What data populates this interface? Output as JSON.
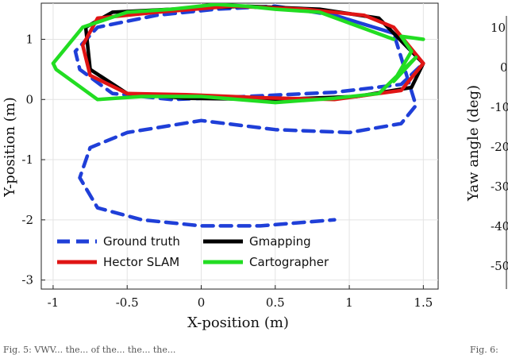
{
  "chart_data": {
    "type": "line",
    "xlabel": "X-position (m)",
    "ylabel": "Y-position (m)",
    "xlim": [
      -1.08,
      1.6
    ],
    "ylim": [
      -3.15,
      1.6
    ],
    "xticks": [
      -1,
      -0.5,
      0,
      0.5,
      1,
      1.5
    ],
    "xtick_labels": [
      "-1",
      "-0.5",
      "0",
      "0.5",
      "1",
      "1.5"
    ],
    "yticks": [
      1,
      0,
      -1,
      -2,
      -3
    ],
    "ytick_labels": [
      "1",
      "0",
      "-1",
      "-2",
      "-3"
    ],
    "grid": true,
    "legend_position": "lower-left",
    "series": [
      {
        "name": "Ground truth",
        "color": "#1f3fd8",
        "style": "dashed",
        "x": [
          0.9,
          1.3,
          1.5,
          1.35,
          0.9,
          0.3,
          -0.2,
          -0.6,
          -0.82,
          -0.85,
          -0.7,
          -0.3,
          0.1,
          0.5,
          0.9,
          1.3,
          1.45,
          1.35,
          1.0,
          0.5,
          0.0,
          -0.5,
          -0.75,
          -0.82,
          -0.7,
          -0.4,
          0.0,
          0.4,
          0.9
        ],
        "y": [
          1.4,
          1.1,
          0.6,
          0.25,
          0.12,
          0.05,
          0.0,
          0.1,
          0.5,
          0.8,
          1.2,
          1.4,
          1.5,
          1.55,
          1.4,
          1.1,
          -0.1,
          -0.4,
          -0.55,
          -0.5,
          -0.35,
          -0.55,
          -0.8,
          -1.3,
          -1.8,
          -2.0,
          -2.1,
          -2.1,
          -2.0
        ]
      },
      {
        "name": "Gmapping",
        "color": "#000000",
        "style": "solid",
        "x": [
          1.2,
          1.5,
          1.42,
          1.05,
          0.5,
          -0.1,
          -0.5,
          -0.75,
          -0.78,
          -0.6,
          -0.2,
          0.3,
          0.8,
          1.2
        ],
        "y": [
          1.35,
          0.6,
          0.2,
          0.05,
          0.0,
          0.02,
          0.1,
          0.5,
          1.2,
          1.45,
          1.5,
          1.55,
          1.5,
          1.35
        ]
      },
      {
        "name": "Hector SLAM",
        "color": "#e01515",
        "style": "solid",
        "x": [
          1.3,
          1.5,
          1.35,
          0.9,
          0.4,
          -0.1,
          -0.5,
          -0.75,
          -0.8,
          -0.7,
          -0.3,
          0.2,
          0.7,
          1.1,
          1.3
        ],
        "y": [
          1.2,
          0.6,
          0.15,
          0.0,
          0.03,
          0.08,
          0.1,
          0.4,
          0.9,
          1.35,
          1.45,
          1.55,
          1.5,
          1.4,
          1.2
        ]
      },
      {
        "name": "Cartographer",
        "color": "#22dd22",
        "style": "solid",
        "x": [
          1.5,
          1.35,
          1.42,
          1.3,
          1.45,
          1.2,
          0.9,
          0.5,
          0.0,
          -0.4,
          -0.7,
          -0.98,
          -1.0,
          -0.8,
          -0.5,
          -0.2,
          0.1,
          0.3,
          0.5,
          0.8,
          1.3
        ],
        "y": [
          1.0,
          1.05,
          0.8,
          0.3,
          0.7,
          0.1,
          0.02,
          -0.05,
          0.05,
          0.05,
          0.0,
          0.5,
          0.6,
          1.2,
          1.45,
          1.5,
          1.58,
          1.55,
          1.5,
          1.45,
          1.0
        ]
      }
    ]
  },
  "clipped_text": {
    "right_axis_ticks": [
      "10",
      "0",
      "-10",
      "-20",
      "-30",
      "-40",
      "-50"
    ],
    "right_axis_label": "Yaw angle (deg)",
    "right_caption": "Fig. 6:",
    "bottom_caption": "Fig. 5: VWV... the... of the... the... the..."
  }
}
